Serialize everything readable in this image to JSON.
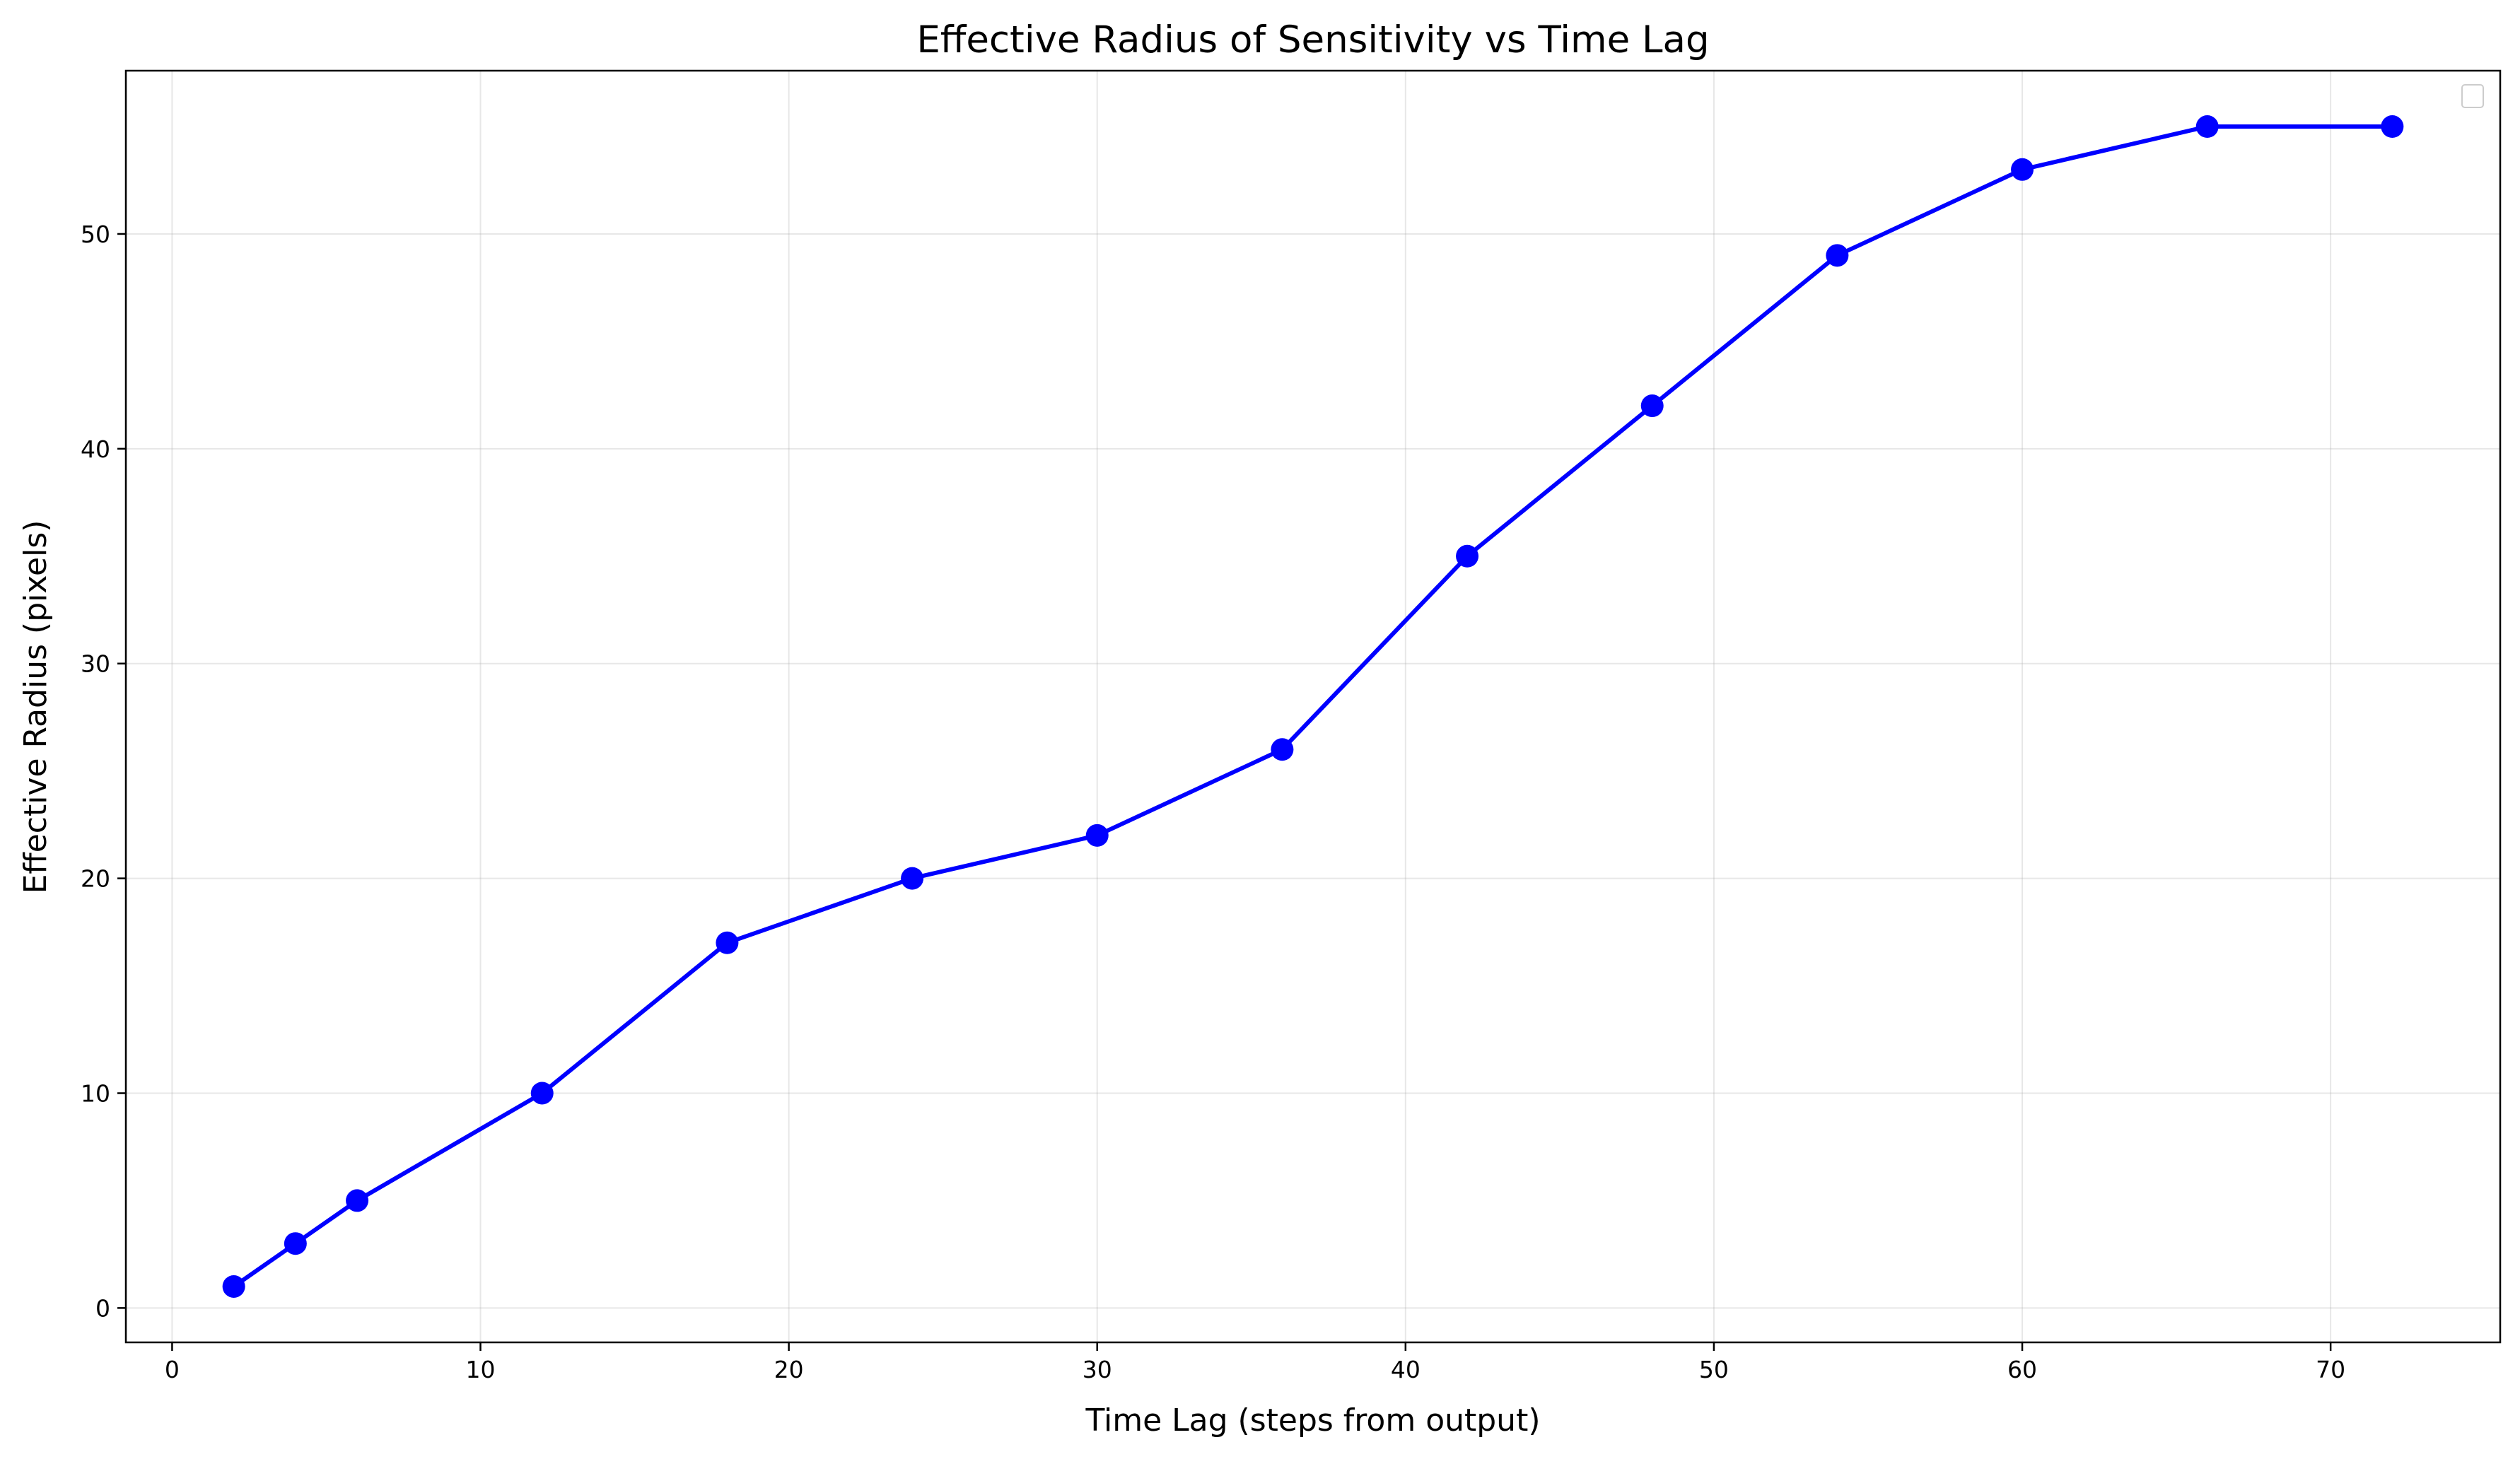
{
  "chart_data": {
    "type": "line",
    "title": "Effective Radius of Sensitivity vs Time Lag",
    "xlabel": "Time Lag (steps from output)",
    "ylabel": "Effective Radius (pixels)",
    "xlim": [
      -1.5,
      75.5
    ],
    "ylim": [
      -1.6,
      57.6
    ],
    "x_ticks": [
      0,
      10,
      20,
      30,
      40,
      50,
      60,
      70
    ],
    "y_ticks": [
      0,
      10,
      20,
      30,
      40,
      50
    ],
    "grid": true,
    "legend": "top-right (empty)",
    "series": [
      {
        "color": "#0000ff",
        "marker": "circle",
        "x": [
          2,
          4,
          6,
          12,
          18,
          24,
          30,
          36,
          42,
          48,
          54,
          60,
          66,
          72
        ],
        "y": [
          1,
          3,
          5,
          10,
          17,
          20,
          22,
          26,
          35,
          42,
          49,
          53,
          55,
          55
        ]
      }
    ]
  }
}
